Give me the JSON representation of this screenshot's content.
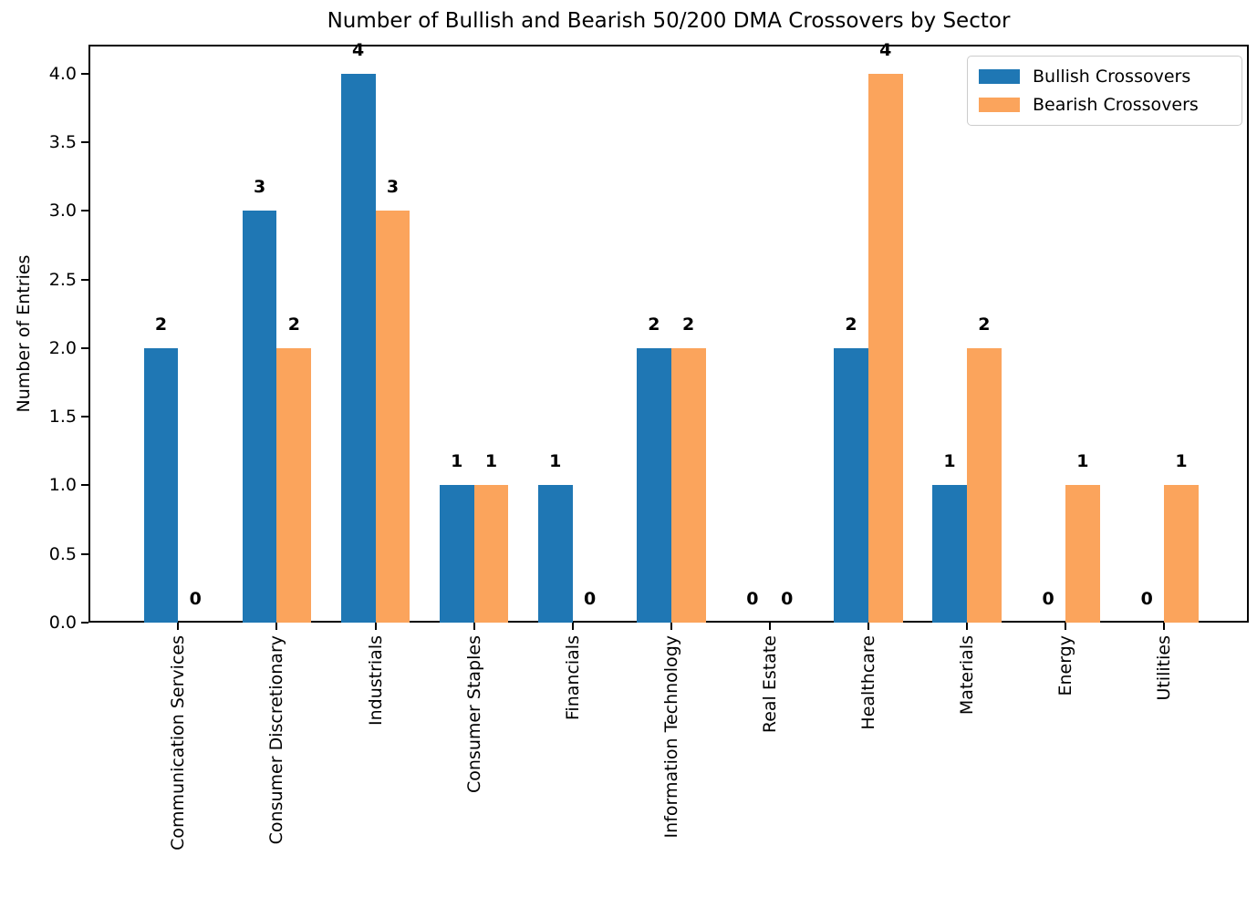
{
  "chart_data": {
    "type": "bar",
    "title": "Number of Bullish and Bearish 50/200 DMA Crossovers by Sector",
    "xlabel": "",
    "ylabel": "Number of Entries",
    "categories": [
      "Communication Services",
      "Consumer Discretionary",
      "Industrials",
      "Consumer Staples",
      "Financials",
      "Information Technology",
      "Real Estate",
      "Healthcare",
      "Materials",
      "Energy",
      "Utilities"
    ],
    "series": [
      {
        "name": "Bullish Crossovers",
        "color": "#1f77b4",
        "values": [
          2,
          3,
          4,
          1,
          1,
          2,
          0,
          2,
          1,
          0,
          0
        ]
      },
      {
        "name": "Bearish Crossovers",
        "color": "#fba45c",
        "values": [
          0,
          2,
          3,
          1,
          0,
          2,
          0,
          4,
          2,
          1,
          1
        ]
      }
    ],
    "ylim": [
      0.0,
      4.21
    ],
    "yticks": [
      "0.0",
      "0.5",
      "1.0",
      "1.5",
      "2.0",
      "2.5",
      "3.0",
      "3.5",
      "4.0"
    ],
    "bar_value_labels": true,
    "grid": false,
    "legend": {
      "position": "upper right"
    }
  }
}
